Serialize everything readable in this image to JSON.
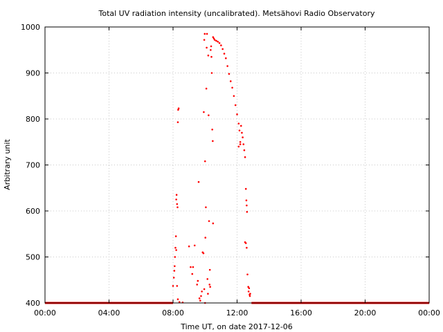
{
  "chart_data": {
    "type": "scatter",
    "title": "Total UV radiation intensity (uncalibrated). Metsähovi Radio Observatory",
    "xlabel": "Time UT, on date 2017-12-06",
    "ylabel": "Arbitrary unit",
    "xlim": [
      0,
      24
    ],
    "ylim": [
      400,
      1000
    ],
    "x_ticks": [
      {
        "value": 0,
        "label": "00:00"
      },
      {
        "value": 4,
        "label": "04:00"
      },
      {
        "value": 8,
        "label": "08:00"
      },
      {
        "value": 12,
        "label": "12:00"
      },
      {
        "value": 16,
        "label": "16:00"
      },
      {
        "value": 20,
        "label": "20:00"
      },
      {
        "value": 24,
        "label": "00:00"
      }
    ],
    "y_ticks": [
      {
        "value": 400,
        "label": "400"
      },
      {
        "value": 500,
        "label": "500"
      },
      {
        "value": 600,
        "label": "600"
      },
      {
        "value": 700,
        "label": "700"
      },
      {
        "value": 800,
        "label": "800"
      },
      {
        "value": 900,
        "label": "900"
      },
      {
        "value": 1000,
        "label": "1000"
      }
    ],
    "grid": true,
    "marker_color": "#ff0000",
    "baseline": {
      "y": 400,
      "x_segments": [
        [
          0,
          8.0
        ],
        [
          12.9,
          24
        ]
      ]
    },
    "series": [
      {
        "points": [
          [
            8.0,
            437
          ],
          [
            8.05,
            455
          ],
          [
            8.08,
            470
          ],
          [
            8.1,
            480
          ],
          [
            8.12,
            500
          ],
          [
            8.15,
            520
          ],
          [
            8.18,
            545
          ],
          [
            8.2,
            625
          ],
          [
            8.22,
            635
          ],
          [
            8.25,
            615
          ],
          [
            8.28,
            608
          ],
          [
            8.3,
            793
          ],
          [
            8.32,
            820
          ],
          [
            8.35,
            823
          ],
          [
            8.2,
            515
          ],
          [
            8.25,
            437
          ],
          [
            8.3,
            408
          ],
          [
            8.4,
            402
          ],
          [
            8.6,
            401
          ],
          [
            9.0,
            523
          ],
          [
            9.1,
            478
          ],
          [
            9.2,
            463
          ],
          [
            9.25,
            478
          ],
          [
            9.35,
            525
          ],
          [
            9.5,
            440
          ],
          [
            9.55,
            448
          ],
          [
            9.6,
            663
          ],
          [
            9.65,
            410
          ],
          [
            9.7,
            405
          ],
          [
            9.75,
            415
          ],
          [
            9.8,
            425
          ],
          [
            9.85,
            510
          ],
          [
            9.9,
            508
          ],
          [
            9.95,
            430
          ],
          [
            10.0,
            400
          ],
          [
            9.92,
            815
          ],
          [
            9.95,
            972
          ],
          [
            9.98,
            985
          ],
          [
            10.0,
            708
          ],
          [
            10.02,
            542
          ],
          [
            10.05,
            608
          ],
          [
            10.08,
            866
          ],
          [
            10.1,
            955
          ],
          [
            10.12,
            985
          ],
          [
            10.15,
            452
          ],
          [
            10.18,
            420
          ],
          [
            10.2,
            938
          ],
          [
            10.22,
            808
          ],
          [
            10.25,
            578
          ],
          [
            10.28,
            440
          ],
          [
            10.3,
            472
          ],
          [
            10.32,
            435
          ],
          [
            10.35,
            950
          ],
          [
            10.38,
            958
          ],
          [
            10.4,
            935
          ],
          [
            10.42,
            900
          ],
          [
            10.45,
            777
          ],
          [
            10.48,
            752
          ],
          [
            10.5,
            573
          ],
          [
            10.5,
            978
          ],
          [
            10.55,
            975
          ],
          [
            10.6,
            972
          ],
          [
            10.7,
            970
          ],
          [
            10.8,
            968
          ],
          [
            10.9,
            965
          ],
          [
            11.0,
            960
          ],
          [
            11.1,
            952
          ],
          [
            11.2,
            942
          ],
          [
            11.3,
            932
          ],
          [
            11.4,
            915
          ],
          [
            11.5,
            898
          ],
          [
            11.6,
            882
          ],
          [
            11.7,
            868
          ],
          [
            11.8,
            850
          ],
          [
            11.9,
            830
          ],
          [
            12.0,
            810
          ],
          [
            12.1,
            790
          ],
          [
            12.15,
            775
          ],
          [
            12.2,
            745
          ],
          [
            12.25,
            785
          ],
          [
            12.3,
            770
          ],
          [
            12.35,
            760
          ],
          [
            12.4,
            745
          ],
          [
            12.45,
            732
          ],
          [
            12.5,
            717
          ],
          [
            12.1,
            740
          ],
          [
            12.2,
            750
          ],
          [
            12.55,
            648
          ],
          [
            12.58,
            623
          ],
          [
            12.6,
            612
          ],
          [
            12.62,
            598
          ],
          [
            12.5,
            532
          ],
          [
            12.55,
            530
          ],
          [
            12.6,
            520
          ],
          [
            12.65,
            462
          ],
          [
            12.7,
            435
          ],
          [
            12.72,
            425
          ],
          [
            12.75,
            432
          ],
          [
            12.78,
            418
          ],
          [
            12.8,
            415
          ],
          [
            12.82,
            420
          ]
        ]
      }
    ]
  }
}
